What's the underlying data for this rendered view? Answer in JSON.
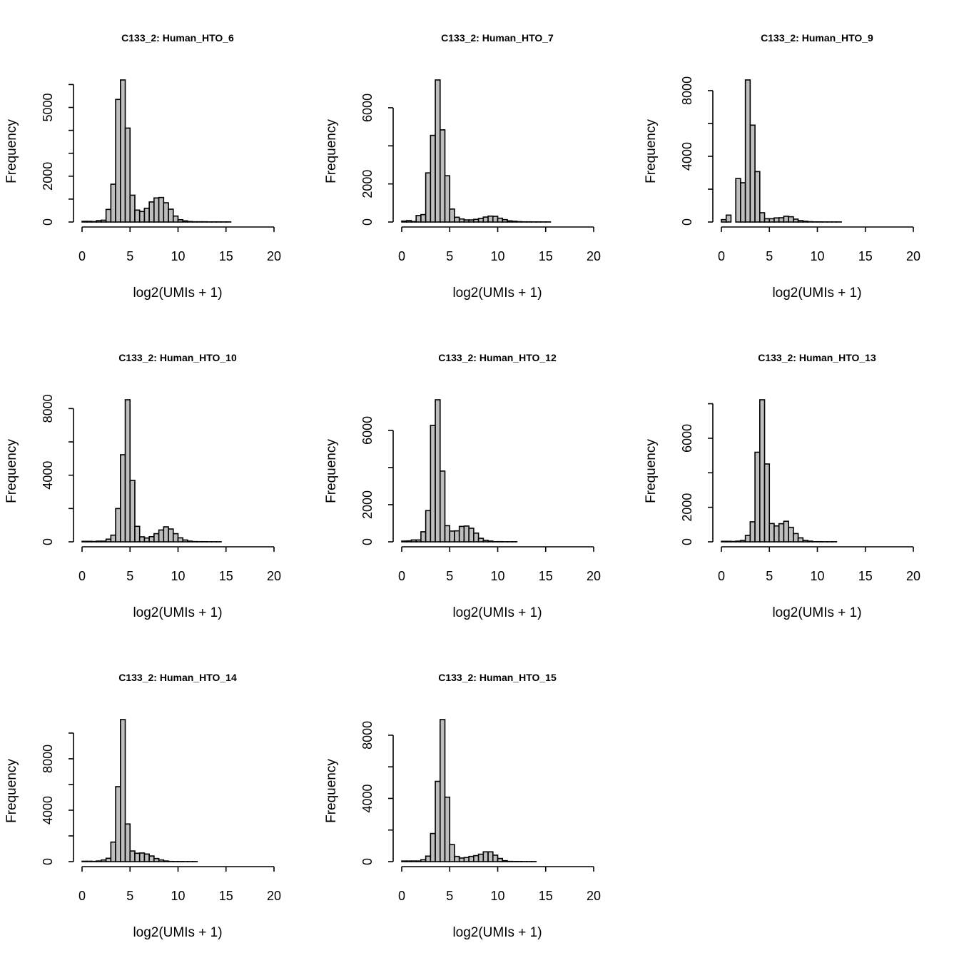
{
  "chart_data": [
    {
      "type": "bar",
      "title": "C133_2: Human_HTO_6",
      "xlabel": "log2(UMIs + 1)",
      "ylabel": "Frequency",
      "xlim": [
        0,
        20
      ],
      "bin_width": 0.5,
      "x_ticks": [
        0,
        5,
        10,
        15,
        20
      ],
      "y_ticks": [
        0,
        1000,
        2000,
        3000,
        4000,
        5000,
        6000
      ],
      "y_tick_labels": [
        "0",
        "2000",
        "5000"
      ],
      "grid": false,
      "color": "#bebebe",
      "values": [
        30,
        30,
        20,
        60,
        80,
        550,
        1650,
        5350,
        6200,
        4100,
        1170,
        520,
        460,
        600,
        875,
        1050,
        1070,
        840,
        560,
        260,
        100,
        50,
        20,
        10,
        10,
        10,
        5,
        5,
        5,
        5,
        5,
        0,
        0,
        0,
        0,
        0,
        0,
        0,
        0,
        0
      ]
    },
    {
      "type": "bar",
      "title": "C133_2: Human_HTO_7",
      "xlabel": "log2(UMIs + 1)",
      "ylabel": "Frequency",
      "xlim": [
        0,
        20
      ],
      "bin_width": 0.5,
      "x_ticks": [
        0,
        5,
        10,
        15,
        20
      ],
      "y_ticks": [
        0,
        2000,
        4000,
        6000
      ],
      "y_tick_labels": [
        "0",
        "2000",
        "6000"
      ],
      "grid": false,
      "color": "#bebebe",
      "values": [
        50,
        75,
        25,
        340,
        390,
        2580,
        4550,
        7460,
        4840,
        2430,
        680,
        250,
        160,
        110,
        110,
        140,
        190,
        260,
        310,
        300,
        200,
        125,
        60,
        40,
        20,
        10,
        10,
        5,
        5,
        5,
        5,
        0,
        0,
        0,
        0,
        0,
        0,
        0,
        0,
        0
      ]
    },
    {
      "type": "bar",
      "title": "C133_2: Human_HTO_9",
      "xlabel": "log2(UMIs + 1)",
      "ylabel": "Frequency",
      "xlim": [
        0,
        20
      ],
      "bin_width": 0.5,
      "x_ticks": [
        0,
        5,
        10,
        15,
        20
      ],
      "y_ticks": [
        0,
        2000,
        4000,
        6000,
        8000
      ],
      "y_tick_labels": [
        "0",
        "4000",
        "8000"
      ],
      "grid": false,
      "color": "#bebebe",
      "values": [
        145,
        420,
        0,
        2650,
        2390,
        8650,
        5900,
        3070,
        565,
        200,
        200,
        250,
        260,
        350,
        320,
        175,
        85,
        45,
        20,
        10,
        10,
        5,
        5,
        5,
        5,
        0,
        0,
        0,
        0,
        0,
        0,
        0,
        0,
        0,
        0,
        0,
        0,
        0,
        0,
        0
      ]
    },
    {
      "type": "bar",
      "title": "C133_2: Human_HTO_10",
      "xlabel": "log2(UMIs + 1)",
      "ylabel": "Frequency",
      "xlim": [
        0,
        20
      ],
      "bin_width": 0.5,
      "x_ticks": [
        0,
        5,
        10,
        15,
        20
      ],
      "y_ticks": [
        0,
        2000,
        4000,
        6000,
        8000
      ],
      "y_tick_labels": [
        "0",
        "4000",
        "8000"
      ],
      "grid": false,
      "color": "#bebebe",
      "values": [
        30,
        30,
        20,
        40,
        40,
        160,
        400,
        2000,
        5230,
        8530,
        3690,
        930,
        300,
        230,
        310,
        490,
        710,
        900,
        770,
        490,
        240,
        110,
        40,
        15,
        10,
        10,
        5,
        5,
        5,
        0,
        0,
        0,
        0,
        0,
        0,
        0,
        0,
        0,
        0,
        0
      ]
    },
    {
      "type": "bar",
      "title": "C133_2: Human_HTO_12",
      "xlabel": "log2(UMIs + 1)",
      "ylabel": "Frequency",
      "xlim": [
        0,
        20
      ],
      "bin_width": 0.5,
      "x_ticks": [
        0,
        5,
        10,
        15,
        20
      ],
      "y_ticks": [
        0,
        2000,
        4000,
        6000
      ],
      "y_tick_labels": [
        "0",
        "2000",
        "6000"
      ],
      "grid": false,
      "color": "#bebebe",
      "values": [
        40,
        50,
        100,
        100,
        540,
        1680,
        6270,
        7650,
        3810,
        870,
        580,
        590,
        830,
        850,
        730,
        470,
        190,
        80,
        40,
        10,
        10,
        5,
        5,
        5,
        0,
        0,
        0,
        0,
        0,
        0,
        0,
        0,
        0,
        0,
        0,
        0,
        0,
        0,
        0,
        0
      ]
    },
    {
      "type": "bar",
      "title": "C133_2: Human_HTO_13",
      "xlabel": "log2(UMIs + 1)",
      "ylabel": "Frequency",
      "xlim": [
        0,
        20
      ],
      "bin_width": 0.5,
      "x_ticks": [
        0,
        5,
        10,
        15,
        20
      ],
      "y_ticks": [
        0,
        2000,
        4000,
        6000,
        8000
      ],
      "y_tick_labels": [
        "0",
        "2000",
        "6000"
      ],
      "grid": false,
      "color": "#bebebe",
      "values": [
        30,
        30,
        20,
        40,
        80,
        370,
        1160,
        5190,
        8230,
        4510,
        1060,
        920,
        1050,
        1190,
        840,
        480,
        230,
        80,
        40,
        10,
        10,
        5,
        5,
        5,
        0,
        0,
        0,
        0,
        0,
        0,
        0,
        0,
        0,
        0,
        0,
        0,
        0,
        0,
        0,
        0
      ]
    },
    {
      "type": "bar",
      "title": "C133_2: Human_HTO_14",
      "xlabel": "log2(UMIs + 1)",
      "ylabel": "Frequency",
      "xlim": [
        0,
        20
      ],
      "bin_width": 0.5,
      "x_ticks": [
        0,
        5,
        10,
        15,
        20
      ],
      "y_ticks": [
        0,
        2000,
        4000,
        6000,
        8000,
        10000
      ],
      "y_tick_labels": [
        "0",
        "4000",
        "8000"
      ],
      "grid": false,
      "color": "#bebebe",
      "values": [
        30,
        30,
        20,
        50,
        130,
        260,
        1520,
        5830,
        11050,
        2930,
        830,
        650,
        670,
        590,
        440,
        240,
        130,
        50,
        15,
        10,
        10,
        5,
        5,
        5,
        0,
        0,
        0,
        0,
        0,
        0,
        0,
        0,
        0,
        0,
        0,
        0,
        0,
        0,
        0,
        0
      ]
    },
    {
      "type": "bar",
      "title": "C133_2: Human_HTO_15",
      "xlabel": "log2(UMIs + 1)",
      "ylabel": "Frequency",
      "xlim": [
        0,
        20
      ],
      "bin_width": 0.5,
      "x_ticks": [
        0,
        5,
        10,
        15,
        20
      ],
      "y_ticks": [
        0,
        2000,
        4000,
        6000,
        8000
      ],
      "y_tick_labels": [
        "0",
        "4000",
        "8000"
      ],
      "grid": false,
      "color": "#bebebe",
      "values": [
        40,
        40,
        40,
        40,
        120,
        350,
        1780,
        5080,
        8990,
        4080,
        1080,
        330,
        230,
        260,
        330,
        380,
        470,
        620,
        620,
        410,
        200,
        60,
        15,
        10,
        10,
        5,
        5,
        5,
        0,
        0,
        0,
        0,
        0,
        0,
        0,
        0,
        0,
        0,
        0,
        0
      ]
    }
  ]
}
